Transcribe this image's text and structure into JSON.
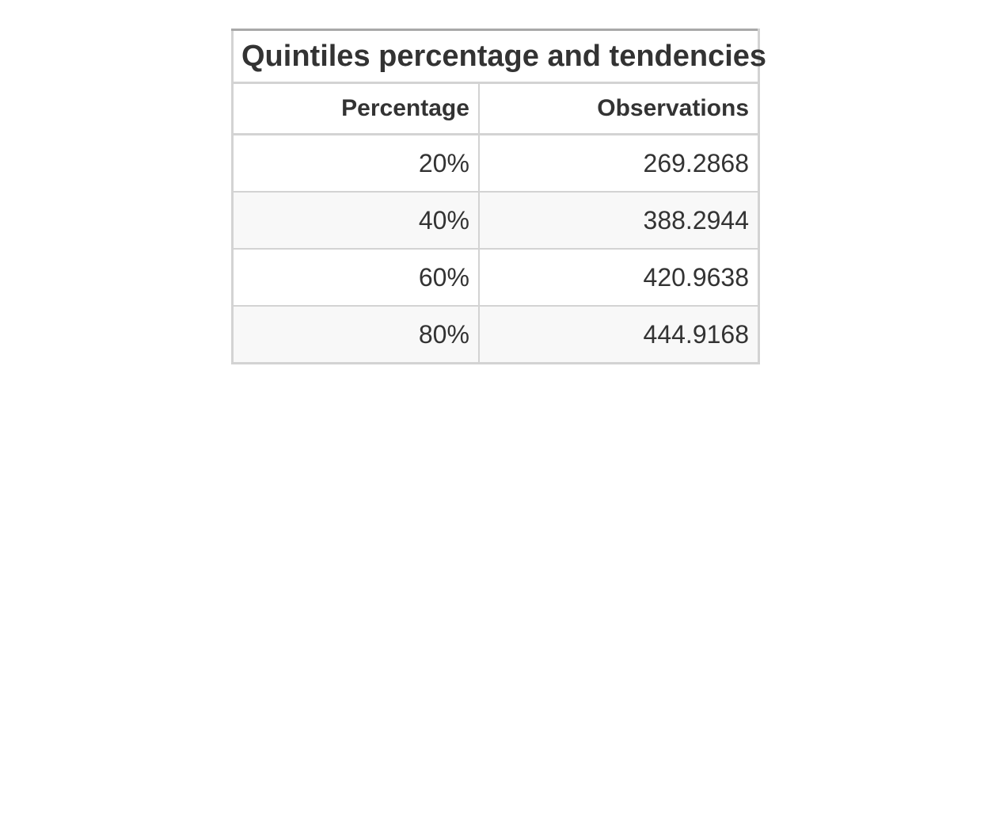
{
  "table": {
    "title": "Quintiles percentage and tendencies",
    "headers": [
      "Percentage",
      "Observations"
    ],
    "rows": [
      [
        "20%",
        "269.2868"
      ],
      [
        "40%",
        "388.2944"
      ],
      [
        "60%",
        "420.9638"
      ],
      [
        "80%",
        "444.9168"
      ]
    ]
  },
  "colors": {
    "text": "#333333",
    "border": "#d3d3d3",
    "top_border": "#a8a8a8",
    "stripe": "#f8f8f8"
  }
}
